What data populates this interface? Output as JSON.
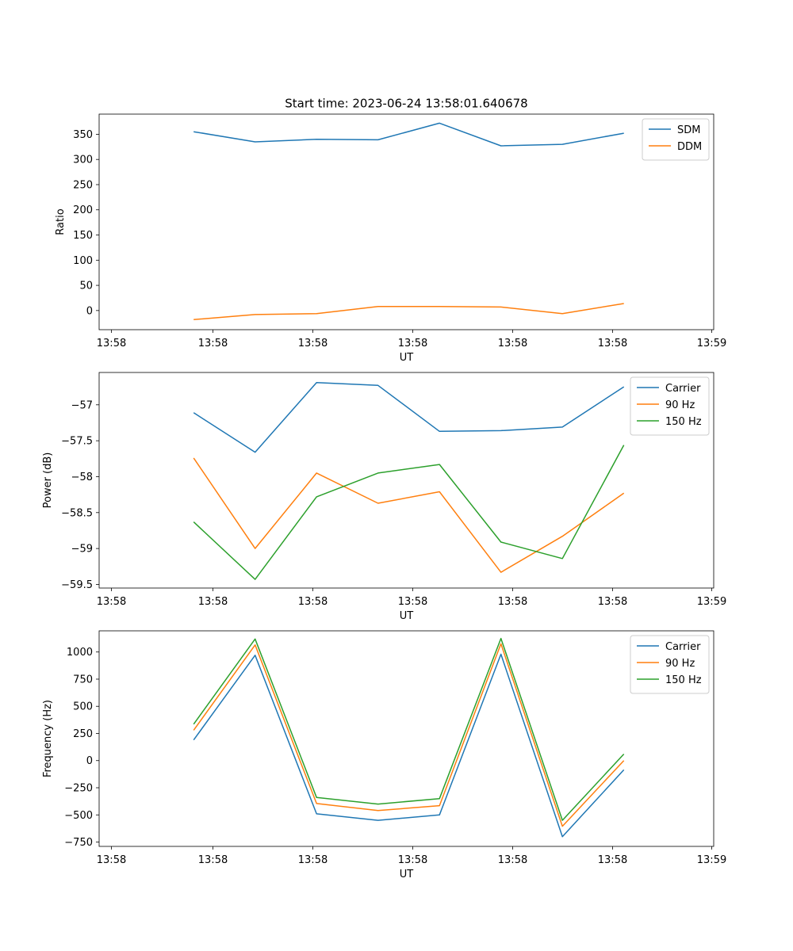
{
  "figure": {
    "title": "Start time: 2023-06-24 13:58:01.640678"
  },
  "colors": {
    "blue": "#1f77b4",
    "orange": "#ff7f0e",
    "green": "#2ca02c"
  },
  "chart_data": [
    {
      "type": "line",
      "title": "Start time: 2023-06-24 13:58:01.640678",
      "xlabel": "UT",
      "ylabel": "Ratio",
      "x_ticks": [
        "13:58",
        "13:58",
        "13:58",
        "13:58",
        "13:58",
        "13:58",
        "13:59"
      ],
      "y_ticks": [
        0,
        50,
        100,
        150,
        200,
        250,
        300,
        350
      ],
      "ylim": [
        -38,
        390
      ],
      "legend_position": "top-right",
      "grid": false,
      "x": [
        0.5,
        1.15,
        1.8,
        2.45,
        3.1,
        3.75,
        4.4,
        5.05
      ],
      "xlim": [
        -0.5,
        6.0
      ],
      "series": [
        {
          "name": "SDM",
          "color": "#1f77b4",
          "values": [
            355,
            335,
            340,
            339,
            372,
            327,
            330,
            352
          ]
        },
        {
          "name": "DDM",
          "color": "#ff7f0e",
          "values": [
            -18,
            -8,
            -6,
            8,
            8,
            7,
            -6,
            14
          ]
        }
      ]
    },
    {
      "type": "line",
      "title": "",
      "xlabel": "UT",
      "ylabel": "Power (dB)",
      "x_ticks": [
        "13:58",
        "13:58",
        "13:58",
        "13:58",
        "13:58",
        "13:58",
        "13:59"
      ],
      "y_ticks": [
        -57.0,
        -57.5,
        -58.0,
        -58.5,
        -59.0,
        -59.5
      ],
      "ylim": [
        -59.55,
        -56.55
      ],
      "legend_position": "top-right",
      "grid": false,
      "x": [
        0.5,
        1.15,
        1.8,
        2.45,
        3.1,
        3.75,
        4.4,
        5.05
      ],
      "xlim": [
        -0.5,
        6.0
      ],
      "series": [
        {
          "name": "Carrier",
          "color": "#1f77b4",
          "values": [
            -57.11,
            -57.66,
            -56.69,
            -56.73,
            -57.37,
            -57.36,
            -57.31,
            -56.75
          ]
        },
        {
          "name": "90 Hz",
          "color": "#ff7f0e",
          "values": [
            -57.74,
            -59.0,
            -57.95,
            -58.37,
            -58.21,
            -59.33,
            -58.83,
            -58.23
          ]
        },
        {
          "name": "150 Hz",
          "color": "#2ca02c",
          "values": [
            -58.63,
            -59.43,
            -58.28,
            -57.95,
            -57.83,
            -58.91,
            -59.14,
            -57.56
          ]
        }
      ]
    },
    {
      "type": "line",
      "title": "",
      "xlabel": "UT",
      "ylabel": "Frequency (Hz)",
      "x_ticks": [
        "13:58",
        "13:58",
        "13:58",
        "13:58",
        "13:58",
        "13:58",
        "13:59"
      ],
      "y_ticks": [
        -750,
        -500,
        -250,
        0,
        250,
        500,
        750,
        1000
      ],
      "ylim": [
        -790,
        1195
      ],
      "legend_position": "top-right",
      "grid": false,
      "x": [
        0.5,
        1.15,
        1.8,
        2.45,
        3.1,
        3.75,
        4.4,
        5.05
      ],
      "xlim": [
        -0.5,
        6.0
      ],
      "series": [
        {
          "name": "Carrier",
          "color": "#1f77b4",
          "values": [
            190,
            970,
            -490,
            -550,
            -500,
            980,
            -700,
            -85
          ]
        },
        {
          "name": "90 Hz",
          "color": "#ff7f0e",
          "values": [
            280,
            1065,
            -395,
            -460,
            -415,
            1075,
            -605,
            0
          ]
        },
        {
          "name": "150 Hz",
          "color": "#2ca02c",
          "values": [
            335,
            1120,
            -340,
            -400,
            -350,
            1125,
            -550,
            60
          ]
        }
      ]
    }
  ]
}
